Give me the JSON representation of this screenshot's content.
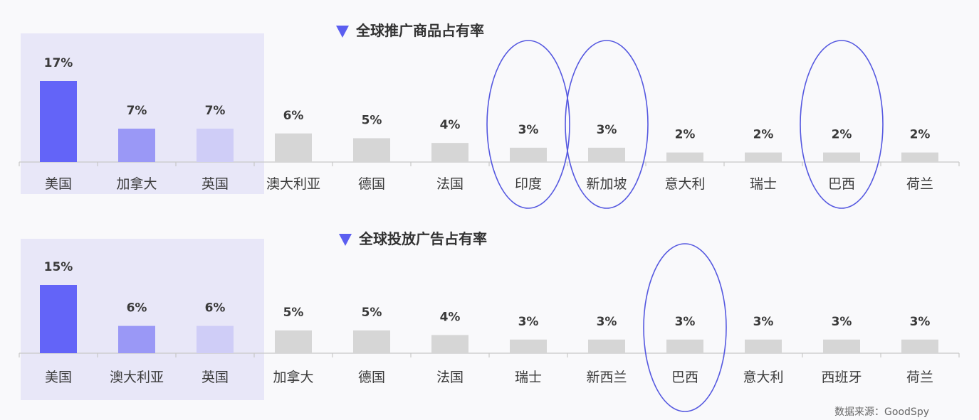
{
  "chart_data": [
    {
      "type": "bar",
      "title": "全球推广商品占有率",
      "categories": [
        "美国",
        "加拿大",
        "英国",
        "澳大利亚",
        "德国",
        "法国",
        "印度",
        "新加坡",
        "意大利",
        "瑞士",
        "巴西",
        "荷兰"
      ],
      "values": [
        17,
        7,
        7,
        6,
        5,
        4,
        3,
        3,
        2,
        2,
        2,
        2
      ],
      "value_labels": [
        "17%",
        "7%",
        "7%",
        "6%",
        "5%",
        "4%",
        "3%",
        "3%",
        "2%",
        "2%",
        "2%",
        "2%"
      ],
      "bar_colors": [
        "#6364f8",
        "#9a98f6",
        "#cfcdf7",
        "#d6d6d6",
        "#d6d6d6",
        "#d6d6d6",
        "#d6d6d6",
        "#d6d6d6",
        "#d6d6d6",
        "#d6d6d6",
        "#d6d6d6",
        "#d6d6d6"
      ],
      "highlighted_top": 3,
      "circled_categories": [
        "印度",
        "新加坡",
        "巴西"
      ],
      "ylim": [
        0,
        17
      ]
    },
    {
      "type": "bar",
      "title": "全球投放广告占有率",
      "categories": [
        "美国",
        "澳大利亚",
        "英国",
        "加拿大",
        "德国",
        "法国",
        "瑞士",
        "新西兰",
        "巴西",
        "意大利",
        "西班牙",
        "荷兰"
      ],
      "values": [
        15,
        6,
        6,
        5,
        5,
        4,
        3,
        3,
        3,
        3,
        3,
        3
      ],
      "value_labels": [
        "15%",
        "6%",
        "6%",
        "5%",
        "5%",
        "4%",
        "3%",
        "3%",
        "3%",
        "3%",
        "3%",
        "3%"
      ],
      "bar_colors": [
        "#6364f8",
        "#9a98f6",
        "#cfcdf7",
        "#d6d6d6",
        "#d6d6d6",
        "#d6d6d6",
        "#d6d6d6",
        "#d6d6d6",
        "#d6d6d6",
        "#d6d6d6",
        "#d6d6d6",
        "#d6d6d6"
      ],
      "highlighted_top": 3,
      "circled_categories": [
        "巴西"
      ],
      "ylim": [
        0,
        15
      ]
    }
  ],
  "colors": {
    "title_marker": "#5b5ef0",
    "callout": "#5558e0",
    "highlight_background": "#e8e7f8"
  },
  "source_text": "数据来源：GoodSpy"
}
